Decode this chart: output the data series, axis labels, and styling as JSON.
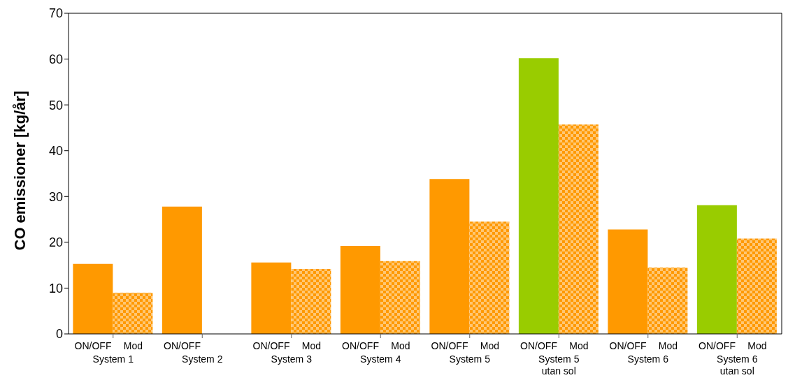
{
  "chart_data": {
    "type": "bar",
    "ylabel": "CO emissioner [kg/år]",
    "categories": [
      "System 1",
      "System 2",
      "System 3",
      "System 4",
      "System 5",
      "System 5\nutan sol",
      "System 6",
      "System 6\nutan sol"
    ],
    "series": [
      {
        "name": "ON/OFF",
        "colors": [
          "#ff9900",
          "#ff9900",
          "#ff9900",
          "#ff9900",
          "#ff9900",
          "#99cc00",
          "#ff9900",
          "#99cc00"
        ],
        "values": [
          15.3,
          27.8,
          15.6,
          19.2,
          33.8,
          60.2,
          22.8,
          28.1
        ]
      },
      {
        "name": "Mod",
        "color": "#ff9900",
        "line_style": "checkered",
        "values": [
          9.0,
          null,
          14.2,
          15.9,
          24.5,
          45.7,
          14.5,
          20.8
        ]
      }
    ],
    "ylim": [
      0,
      70
    ],
    "yticks": [
      0,
      10,
      20,
      30,
      40,
      50,
      60,
      70
    ]
  }
}
